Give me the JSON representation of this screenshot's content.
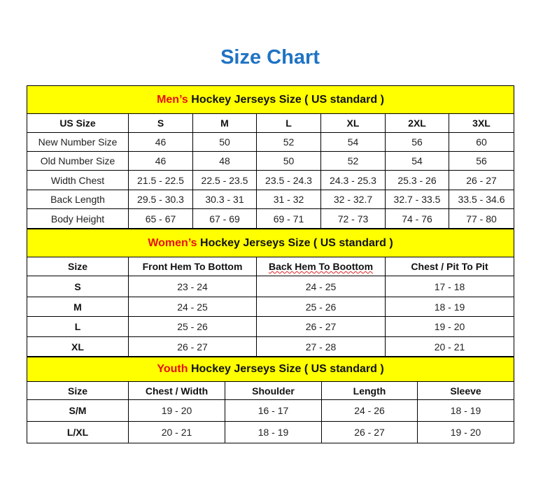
{
  "title": "Size Chart",
  "men": {
    "heading_highlight": "Men’s",
    "heading_rest": " Hockey Jerseys Size ( US standard )",
    "columns": [
      "US Size",
      "S",
      "M",
      "L",
      "XL",
      "2XL",
      "3XL"
    ],
    "rows": [
      [
        "New Number Size",
        "46",
        "50",
        "52",
        "54",
        "56",
        "60"
      ],
      [
        "Old Number Size",
        "46",
        "48",
        "50",
        "52",
        "54",
        "56"
      ],
      [
        "Width Chest",
        "21.5 - 22.5",
        "22.5 - 23.5",
        "23.5 - 24.3",
        "24.3 - 25.3",
        "25.3 - 26",
        "26 - 27"
      ],
      [
        "Back Length",
        "29.5 - 30.3",
        "30.3 - 31",
        "31 - 32",
        "32 - 32.7",
        "32.7 - 33.5",
        "33.5 - 34.6"
      ],
      [
        "Body Height",
        "65 - 67",
        "67 - 69",
        "69 - 71",
        "72 - 73",
        "74 - 76",
        "77 - 80"
      ]
    ]
  },
  "women": {
    "heading_highlight": "Women’s",
    "heading_rest": " Hockey Jerseys Size ( US standard )",
    "columns": [
      "Size",
      "Front Hem To Bottom",
      "Back Hem To Boottom",
      "Chest / Pit To Pit"
    ],
    "rows": [
      [
        "S",
        "23 - 24",
        "24 - 25",
        "17 - 18"
      ],
      [
        "M",
        "24 - 25",
        "25 - 26",
        "18 - 19"
      ],
      [
        "L",
        "25 - 26",
        "26 - 27",
        "19 - 20"
      ],
      [
        "XL",
        "26 - 27",
        "27 - 28",
        "20 - 21"
      ]
    ]
  },
  "youth": {
    "heading_highlight": "Youth",
    "heading_rest": " Hockey Jerseys Size ( US standard )",
    "columns": [
      "Size",
      "Chest / Width",
      "Shoulder",
      "Length",
      "Sleeve"
    ],
    "rows": [
      [
        "S/M",
        "19 - 20",
        "16 - 17",
        "24 - 26",
        "18 - 19"
      ],
      [
        "L/XL",
        "20 - 21",
        "18 - 19",
        "26 - 27",
        "19 - 20"
      ]
    ]
  }
}
